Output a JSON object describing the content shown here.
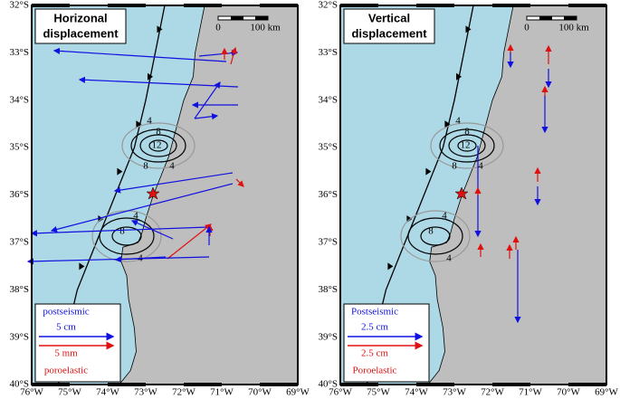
{
  "axes": {
    "lat_labels": [
      "32°S",
      "33°S",
      "34°S",
      "35°S",
      "36°S",
      "37°S",
      "38°S",
      "39°S",
      "40°S"
    ],
    "lon_labels": [
      "76°W",
      "75°W",
      "74°W",
      "73°W",
      "72°W",
      "71°W",
      "70°W",
      "69°W"
    ]
  },
  "panels": [
    {
      "title": [
        "Horizonal",
        "displacement"
      ],
      "scale": {
        "zero": "0",
        "length": "100 km"
      },
      "legend": [
        "postseismic",
        "5 cm",
        "5 mm",
        "poroelastic"
      ],
      "contours": [
        "4",
        "8",
        "12",
        "8",
        "4",
        "4",
        "8",
        "4"
      ]
    },
    {
      "title": [
        "Vertical",
        "displacement"
      ],
      "scale": {
        "zero": "0",
        "length": "100 km"
      },
      "legend": [
        "Postseismic",
        "2.5 cm",
        "2.5 cm",
        "Poroelastic"
      ],
      "contours": [
        "4",
        "8",
        "12",
        "8",
        "4",
        "4",
        "8",
        "4"
      ]
    }
  ]
}
